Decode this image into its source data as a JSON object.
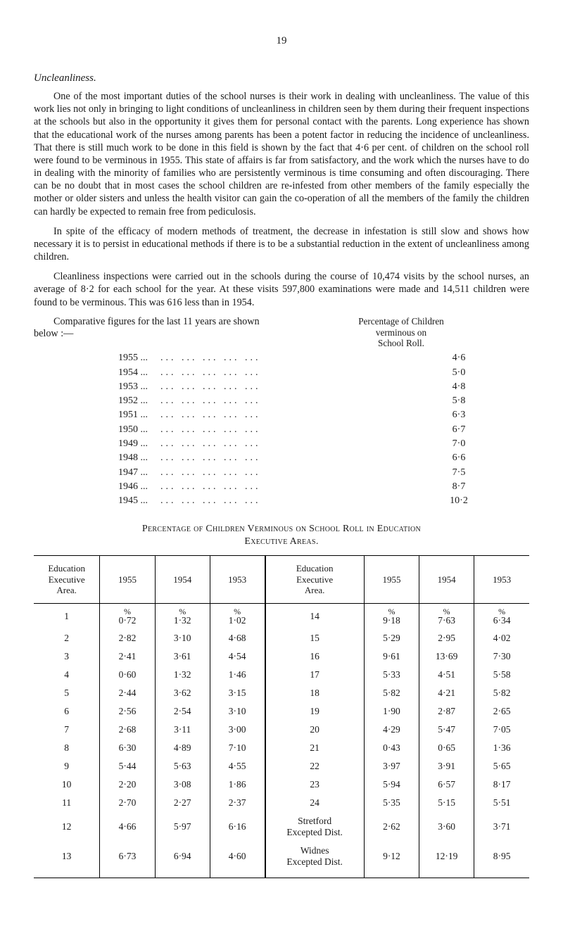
{
  "page_number": "19",
  "heading": "Uncleanliness.",
  "paragraphs": [
    "One of the most important duties of the school nurses is their work in dealing with uncleanliness. The value of this work lies not only in bringing to light conditions of uncleanliness in children seen by them during their frequent inspections at the schools but also in the opportunity it gives them for personal contact with the parents. Long experience has shown that the educational work of the nurses among parents has been a potent factor in reducing the incidence of uncleanliness. That there is still much work to be done in this field is shown by the fact that 4·6 per cent. of children on the school roll were found to be verminous in 1955. This state of affairs is far from satisfactory, and the work which the nurses have to do in dealing with the minority of families who are persistently verminous is time consuming and often discouraging. There can be no doubt that in most cases the school children are re-infested from other members of the family especially the mother or older sisters and unless the health visitor can gain the co-operation of all the members of the family the children can hardly be expected to remain free from pediculosis.",
    "In spite of the efficacy of modern methods of treatment, the decrease in infestation is still slow and shows how necessary it is to persist in educational methods if there is to be a substantial reduction in the extent of uncleanliness among children.",
    "Cleanliness inspections were carried out in the schools during the course of 10,474 visits by the school nurses, an average of 8·2 for each school for the year. At these visits 597,800 examinations were made and 14,511 children were found to be verminous. This was 616 less than in 1954.",
    "Comparative figures for the last 11 years are shown below :—"
  ],
  "comp_header": {
    "line1": "Percentage of Children",
    "line2": "verminous on",
    "line3": "School Roll."
  },
  "year_rows": [
    {
      "year": "1955",
      "val": "4·6"
    },
    {
      "year": "1954",
      "val": "5·0"
    },
    {
      "year": "1953",
      "val": "4·8"
    },
    {
      "year": "1952",
      "val": "5·8"
    },
    {
      "year": "1951",
      "val": "6·3"
    },
    {
      "year": "1950",
      "val": "6·7"
    },
    {
      "year": "1949",
      "val": "7·0"
    },
    {
      "year": "1948",
      "val": "6·6"
    },
    {
      "year": "1947",
      "val": "7·5"
    },
    {
      "year": "1946",
      "val": "8·7"
    },
    {
      "year": "1945",
      "val": "10·2"
    }
  ],
  "table_title_l1": "Percentage of Children Verminous on School Roll in Education",
  "table_title_l2": "Executive Areas.",
  "table_headers": {
    "area": "Education\nExecutive\nArea.",
    "y1955": "1955",
    "y1954": "1954",
    "y1953": "1953"
  },
  "table_rows": [
    {
      "a": "1",
      "v": [
        "0·72",
        "1·32",
        "1·02"
      ],
      "b": "14",
      "w": [
        "9·18",
        "7·63",
        "6·34"
      ],
      "pct": true
    },
    {
      "a": "2",
      "v": [
        "2·82",
        "3·10",
        "4·68"
      ],
      "b": "15",
      "w": [
        "5·29",
        "2·95",
        "4·02"
      ]
    },
    {
      "a": "3",
      "v": [
        "2·41",
        "3·61",
        "4·54"
      ],
      "b": "16",
      "w": [
        "9·61",
        "13·69",
        "7·30"
      ]
    },
    {
      "a": "4",
      "v": [
        "0·60",
        "1·32",
        "1·46"
      ],
      "b": "17",
      "w": [
        "5·33",
        "4·51",
        "5·58"
      ]
    },
    {
      "a": "5",
      "v": [
        "2·44",
        "3·62",
        "3·15"
      ],
      "b": "18",
      "w": [
        "5·82",
        "4·21",
        "5·82"
      ]
    },
    {
      "a": "6",
      "v": [
        "2·56",
        "2·54",
        "3·10"
      ],
      "b": "19",
      "w": [
        "1·90",
        "2·87",
        "2·65"
      ]
    },
    {
      "a": "7",
      "v": [
        "2·68",
        "3·11",
        "3·00"
      ],
      "b": "20",
      "w": [
        "4·29",
        "5·47",
        "7·05"
      ]
    },
    {
      "a": "8",
      "v": [
        "6·30",
        "4·89",
        "7·10"
      ],
      "b": "21",
      "w": [
        "0·43",
        "0·65",
        "1·36"
      ]
    },
    {
      "a": "9",
      "v": [
        "5·44",
        "5·63",
        "4·55"
      ],
      "b": "22",
      "w": [
        "3·97",
        "3·91",
        "5·65"
      ]
    },
    {
      "a": "10",
      "v": [
        "2·20",
        "3·08",
        "1·86"
      ],
      "b": "23",
      "w": [
        "5·94",
        "6·57",
        "8·17"
      ]
    },
    {
      "a": "11",
      "v": [
        "2·70",
        "2·27",
        "2·37"
      ],
      "b": "24",
      "w": [
        "5·35",
        "5·15",
        "5·51"
      ]
    },
    {
      "a": "12",
      "v": [
        "4·66",
        "5·97",
        "6·16"
      ],
      "b": "Stretford\nExcepted Dist.",
      "w": [
        "2·62",
        "3·60",
        "3·71"
      ]
    },
    {
      "a": "13",
      "v": [
        "6·73",
        "6·94",
        "4·60"
      ],
      "b": "Widnes\nExcepted Dist.",
      "w": [
        "9·12",
        "12·19",
        "8·95"
      ]
    }
  ]
}
